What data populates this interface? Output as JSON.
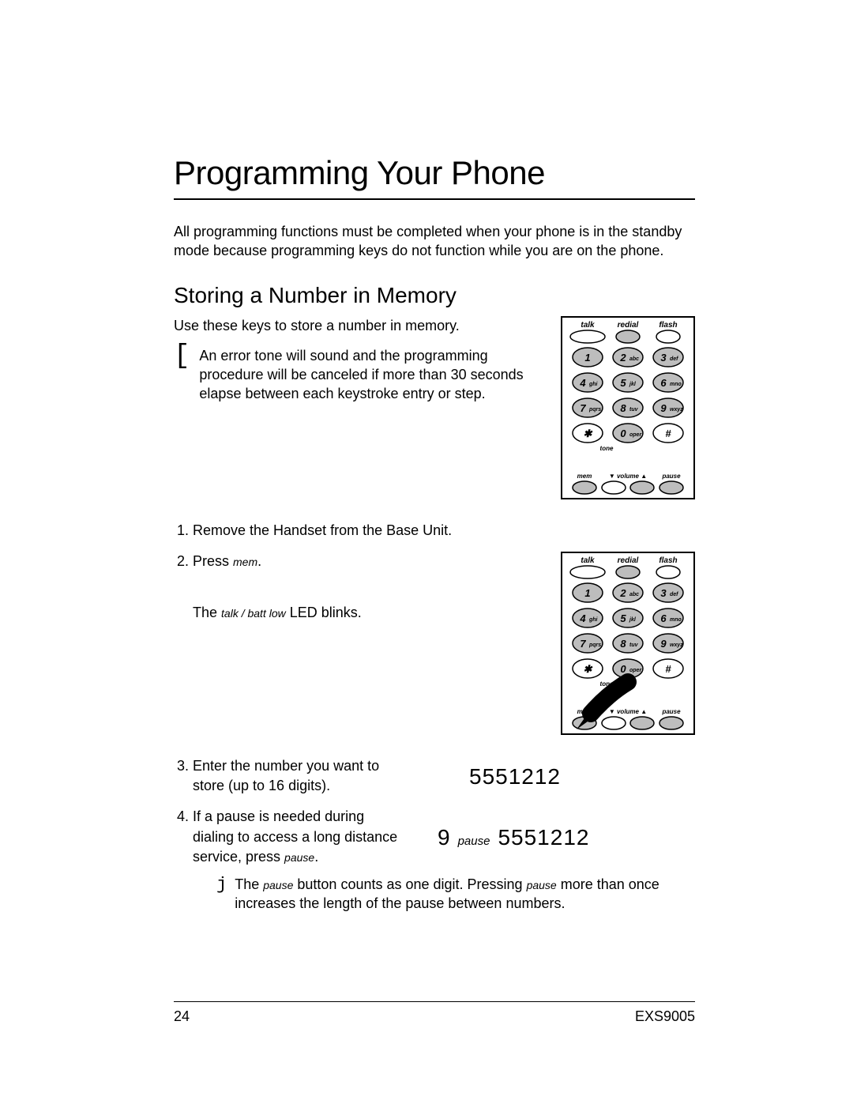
{
  "title": "Programming Your Phone",
  "intro": "All programming functions must be completed when your phone is in the standby mode because programming keys do not function while you are on the phone.",
  "subtitle": "Storing a Number in Memory",
  "storing_lead": "Use these keys to store a number in memory.",
  "error_note": "An error tone will sound and the programming procedure will be canceled if more than 30 seconds elapse between each keystroke entry or step.",
  "step1": "Remove the Handset from the Base Unit.",
  "step2_pre": "Press ",
  "step2_key": "mem",
  "step2_post": ".",
  "led_pre": "The ",
  "led_key": "talk / batt low",
  "led_post": " LED blinks.",
  "step3": "Enter the number you want to store (up to 16 digits).",
  "step3_example": "5551212",
  "step4_pre": "If a pause is needed during dialing to access a long distance service, press ",
  "step4_key": "pause",
  "step4_post": ".",
  "step4_example_nine": "9",
  "step4_example_pause": "pause",
  "step4_example_num": "5551212",
  "pause_note_1a": "The ",
  "pause_note_1b": "pause",
  "pause_note_1c": " button counts as one digit. Pressing ",
  "pause_note_1d": "pause",
  "pause_note_1e": " more than once increases the length of the pause between numbers.",
  "page_num": "24",
  "model": "EXS9005",
  "keypad": {
    "top_labels": [
      "talk",
      "redial",
      "flash"
    ],
    "bottom_labels": [
      "mem",
      "▼ volume ▲",
      "pause"
    ],
    "tone_label": "tone",
    "keys": [
      {
        "n": "1",
        "s": ""
      },
      {
        "n": "2",
        "s": "abc"
      },
      {
        "n": "3",
        "s": "def"
      },
      {
        "n": "4",
        "s": "ghi"
      },
      {
        "n": "5",
        "s": "jkl"
      },
      {
        "n": "6",
        "s": "mno"
      },
      {
        "n": "7",
        "s": "pqrs"
      },
      {
        "n": "8",
        "s": "tuv"
      },
      {
        "n": "9",
        "s": "wxyz"
      },
      {
        "n": "✱",
        "s": ""
      },
      {
        "n": "0",
        "s": "oper"
      },
      {
        "n": "#",
        "s": ""
      }
    ],
    "style": {
      "border_color": "#000000",
      "fill_highlight": "#bdbdbd",
      "fill_white": "#ffffff",
      "stroke_width": 1.5
    }
  }
}
